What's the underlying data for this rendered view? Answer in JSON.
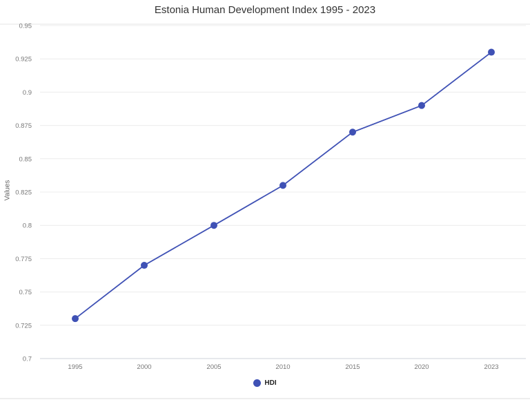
{
  "chart_data": {
    "type": "line",
    "title": "Estonia Human Development Index 1995 - 2023",
    "xlabel": "",
    "ylabel": "Values",
    "categories": [
      "1995",
      "2000",
      "2005",
      "2010",
      "2015",
      "2020",
      "2023"
    ],
    "series": [
      {
        "name": "HDI",
        "color": "#3f51b5",
        "values": [
          0.73,
          0.77,
          0.8,
          0.83,
          0.87,
          0.89,
          0.93
        ]
      }
    ],
    "ylim": [
      0.7,
      0.95
    ],
    "yticks": [
      "0.95",
      "0.925",
      "0.9",
      "0.875",
      "0.85",
      "0.825",
      "0.8",
      "0.775",
      "0.75",
      "0.725",
      "0.7"
    ],
    "grid": true,
    "legend_position": "bottom"
  },
  "legend": {
    "label": "HDI"
  }
}
